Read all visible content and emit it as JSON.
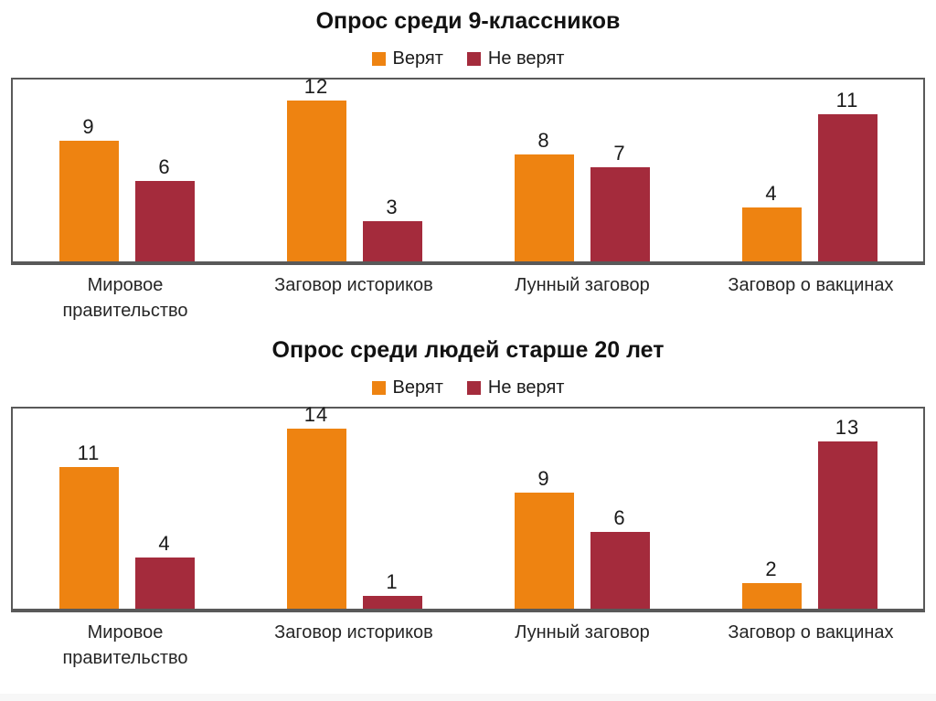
{
  "page": {
    "background": "#FFFFFF",
    "frame_color": "#595959"
  },
  "chart_data": [
    {
      "type": "bar",
      "title": "Опрос среди 9-классников",
      "categories": [
        "Мировое правительство",
        "Заговор историков",
        "Лунный заговор",
        "Заговор о вакцинах"
      ],
      "series": [
        {
          "name": "Верят",
          "color": "#EE8311",
          "values": [
            9,
            12,
            8,
            4
          ]
        },
        {
          "name": "Не верят",
          "color": "#A42B3C",
          "values": [
            6,
            3,
            7,
            11
          ]
        }
      ],
      "xlabel": "",
      "ylabel": "",
      "ylim": [
        0,
        14
      ],
      "grid": false,
      "legend_position": "top",
      "data_labels": true
    },
    {
      "type": "bar",
      "title": "Опрос среди людей старше 20 лет",
      "categories": [
        "Мировое правительство",
        "Заговор историков",
        "Лунный заговор",
        "Заговор о вакцинах"
      ],
      "series": [
        {
          "name": "Верят",
          "color": "#EE8311",
          "values": [
            11,
            14,
            9,
            2
          ]
        },
        {
          "name": "Не верят",
          "color": "#A42B3C",
          "values": [
            4,
            1,
            6,
            13
          ]
        }
      ],
      "xlabel": "",
      "ylabel": "",
      "ylim": [
        0,
        16
      ],
      "grid": false,
      "legend_position": "top",
      "data_labels": true
    }
  ]
}
